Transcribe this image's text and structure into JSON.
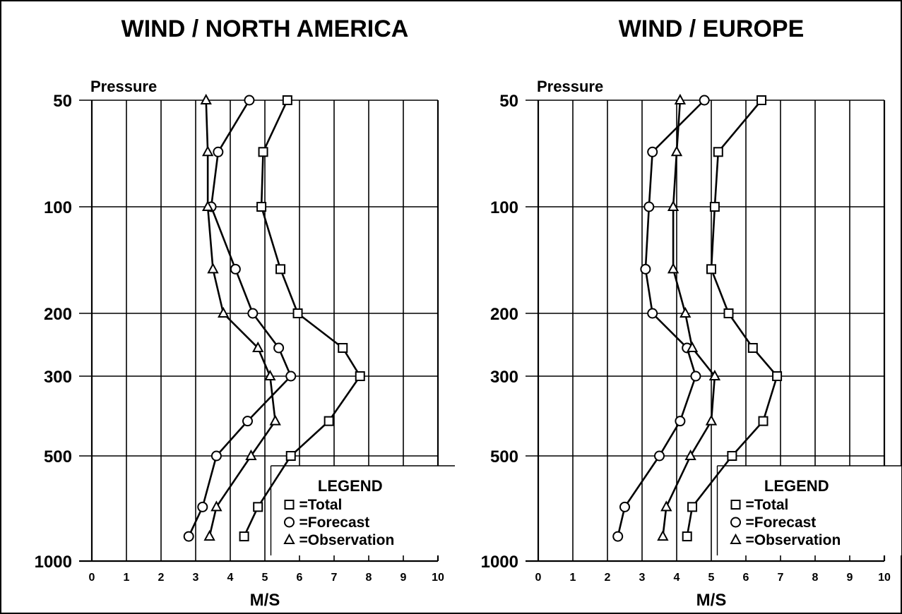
{
  "chart_data": [
    {
      "type": "line",
      "title": "WIND / NORTH AMERICA",
      "ylabel": "Pressure",
      "xlabel": "M/S",
      "xlim": [
        0,
        10
      ],
      "x_ticks": [
        "0",
        "1",
        "2",
        "3",
        "4",
        "5",
        "6",
        "7",
        "8",
        "9",
        "10"
      ],
      "y_ticks": [
        "50",
        "100",
        "200",
        "300",
        "500",
        "1000"
      ],
      "y_scale": "log-pressure",
      "ylim": [
        1000,
        50
      ],
      "grid": true,
      "legend": {
        "title": "LEGEND",
        "placement": "bottom-right"
      },
      "levels": [
        50,
        70,
        100,
        150,
        200,
        250,
        300,
        400,
        500,
        700,
        850
      ],
      "series": [
        {
          "name": "Total",
          "marker": "square",
          "x": [
            5.65,
            4.95,
            4.9,
            5.45,
            5.95,
            7.25,
            7.75,
            6.85,
            5.75,
            4.8,
            4.4
          ]
        },
        {
          "name": "Forecast",
          "marker": "circle",
          "x": [
            4.55,
            3.65,
            3.45,
            4.15,
            4.65,
            5.4,
            5.75,
            4.5,
            3.6,
            3.2,
            2.8
          ]
        },
        {
          "name": "Observation",
          "marker": "triangle",
          "x": [
            3.3,
            3.35,
            3.35,
            3.5,
            3.8,
            4.8,
            5.15,
            5.3,
            4.6,
            3.6,
            3.4
          ]
        }
      ]
    },
    {
      "type": "line",
      "title": "WIND / EUROPE",
      "ylabel": "Pressure",
      "xlabel": "M/S",
      "xlim": [
        0,
        10
      ],
      "x_ticks": [
        "0",
        "1",
        "2",
        "3",
        "4",
        "5",
        "6",
        "7",
        "8",
        "9",
        "10"
      ],
      "y_ticks": [
        "50",
        "100",
        "200",
        "300",
        "500",
        "1000"
      ],
      "y_scale": "log-pressure",
      "ylim": [
        1000,
        50
      ],
      "grid": true,
      "legend": {
        "title": "LEGEND",
        "placement": "bottom-right"
      },
      "levels": [
        50,
        70,
        100,
        150,
        200,
        250,
        300,
        400,
        500,
        700,
        850
      ],
      "series": [
        {
          "name": "Total",
          "marker": "square",
          "x": [
            6.45,
            5.2,
            5.1,
            5.0,
            5.5,
            6.2,
            6.9,
            6.5,
            5.6,
            4.45,
            4.3
          ]
        },
        {
          "name": "Forecast",
          "marker": "circle",
          "x": [
            4.8,
            3.3,
            3.2,
            3.1,
            3.3,
            4.3,
            4.55,
            4.1,
            3.5,
            2.5,
            2.3
          ]
        },
        {
          "name": "Observation",
          "marker": "triangle",
          "x": [
            4.1,
            4.0,
            3.9,
            3.9,
            4.25,
            4.45,
            5.1,
            5.0,
            4.4,
            3.7,
            3.6
          ]
        }
      ]
    }
  ],
  "legend_labels": {
    "total": "=Total",
    "forecast": "=Forecast",
    "observation": "=Observation"
  }
}
